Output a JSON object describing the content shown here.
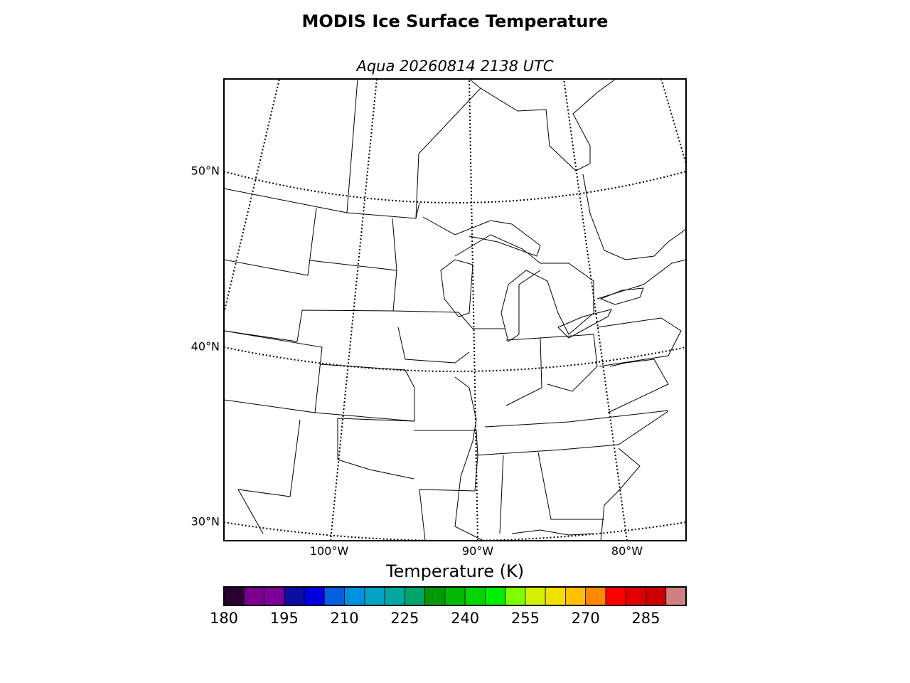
{
  "title": "MODIS Ice Surface Temperature",
  "subtitle": "Aqua 20260814 2138 UTC",
  "map": {
    "lat_labels": [
      "50°N",
      "40°N",
      "30°N"
    ],
    "lon_labels": [
      "100°W",
      "90°W",
      "80°W"
    ]
  },
  "colorbar": {
    "label": "Temperature (K)",
    "levels": [
      180,
      185,
      190,
      195,
      200,
      205,
      210,
      215,
      220,
      225,
      230,
      235,
      240,
      245,
      250,
      255,
      260,
      265,
      270,
      275,
      280,
      285,
      290,
      295
    ],
    "colors": [
      "#2a0032",
      "#7a0090",
      "#7e0098",
      "#0c0ca2",
      "#0000de",
      "#0060e0",
      "#0090e0",
      "#00a2c6",
      "#00a8a0",
      "#00a46c",
      "#009a00",
      "#00bb00",
      "#00d600",
      "#00f000",
      "#80ff00",
      "#d4f000",
      "#f2e000",
      "#ffc000",
      "#ff8800",
      "#ff0000",
      "#e00000",
      "#cc0000",
      "#d08080"
    ],
    "ticks": [
      180,
      195,
      210,
      225,
      240,
      255,
      270,
      285
    ]
  }
}
